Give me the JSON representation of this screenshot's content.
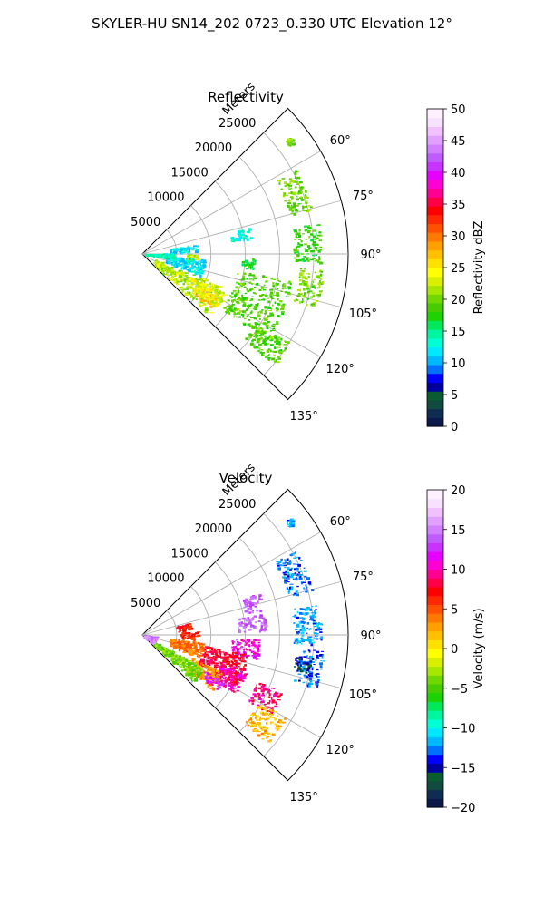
{
  "figure": {
    "title": "SKYLER-HU  SN14_202  0723_0.330 UTC Elevation 12°"
  },
  "chart_data": [
    {
      "type": "polar-sector-ppi",
      "title": "Reflectivity",
      "radial_label": "Meters",
      "radial_ticks": [
        "5000",
        "10000",
        "15000",
        "20000",
        "25000"
      ],
      "r_max": 30000,
      "azimuth_range": [
        45,
        135
      ],
      "azimuth_ticks": [
        "60°",
        "75°",
        "90°",
        "105°",
        "120°",
        "135°"
      ],
      "grid": true,
      "colorbar": {
        "label": "Reflectivity dBZ",
        "min": 0,
        "max": 50,
        "ticks": [
          "0",
          "5",
          "10",
          "15",
          "20",
          "25",
          "30",
          "35",
          "40",
          "45",
          "50"
        ],
        "colors": [
          "#0b1a4a",
          "#0f2d52",
          "#114a3e",
          "#0a5a32",
          "#0000a0",
          "#0000ff",
          "#0070ff",
          "#00b8ff",
          "#00e8ff",
          "#00ffd2",
          "#00f5a0",
          "#00e85a",
          "#1cd200",
          "#46cc00",
          "#70d800",
          "#a8e800",
          "#d8f000",
          "#ffff00",
          "#ffe000",
          "#ffc000",
          "#ffa000",
          "#ff7800",
          "#ff5000",
          "#ff2800",
          "#ff0000",
          "#ff0046",
          "#ff0090",
          "#ff00d2",
          "#e600ff",
          "#c833ff",
          "#bf5cff",
          "#d080ff",
          "#e0a0ff",
          "#f0c0ff",
          "#f8e0ff",
          "#fff0ff"
        ]
      },
      "echo_regions": [
        {
          "az": [
            51,
            54
          ],
          "r": [
            26500,
            27500
          ],
          "dbz": 20
        },
        {
          "az": [
            61,
            75
          ],
          "r": [
            22000,
            25500
          ],
          "dbz": 20
        },
        {
          "az": [
            80,
            93
          ],
          "r": [
            22000,
            26000
          ],
          "dbz": 18
        },
        {
          "az": [
            95,
            107
          ],
          "r": [
            23000,
            26500
          ],
          "dbz": 20
        },
        {
          "az": [
            100,
            125
          ],
          "r": [
            14000,
            22000
          ],
          "dbz": 19
        },
        {
          "az": [
            112,
            133
          ],
          "r": [
            2000,
            13000
          ],
          "dbz": 22
        },
        {
          "az": [
            120,
            128
          ],
          "r": [
            9000,
            12500
          ],
          "dbz": 27
        },
        {
          "az": [
            115,
            125
          ],
          "r": [
            8000,
            13500
          ],
          "dbz": 24
        },
        {
          "az": [
            95,
            110
          ],
          "r": [
            3500,
            9000
          ],
          "dbz": 12
        },
        {
          "az": [
            88,
            97
          ],
          "r": [
            400,
            4500
          ],
          "dbz": 14
        },
        {
          "az": [
            79,
            88
          ],
          "r": [
            4000,
            8000
          ],
          "dbz": 12
        },
        {
          "az": [
            76,
            82
          ],
          "r": [
            13000,
            16000
          ],
          "dbz": 13
        },
        {
          "az": [
            90,
            96
          ],
          "r": [
            6500,
            8000
          ],
          "dbz": 22
        },
        {
          "az": [
            92,
            98
          ],
          "r": [
            14500,
            16500
          ],
          "dbz": 17
        },
        {
          "az": [
            121,
            130
          ],
          "r": [
            19000,
            25000
          ],
          "dbz": 19
        }
      ]
    },
    {
      "type": "polar-sector-ppi",
      "title": "Velocity",
      "radial_label": "Meters",
      "radial_ticks": [
        "5000",
        "10000",
        "15000",
        "20000",
        "25000"
      ],
      "r_max": 30000,
      "azimuth_range": [
        45,
        135
      ],
      "azimuth_ticks": [
        "60°",
        "75°",
        "90°",
        "105°",
        "120°",
        "135°"
      ],
      "grid": true,
      "colorbar": {
        "label": "Velocity (m/s)",
        "min": -20,
        "max": 20,
        "ticks": [
          "−20",
          "−15",
          "−10",
          "−5",
          "0",
          "5",
          "10",
          "15",
          "20"
        ],
        "colors": [
          "#0b1a4a",
          "#0f2d52",
          "#114a3e",
          "#0a5a32",
          "#0000a0",
          "#0000ff",
          "#0070ff",
          "#00b8ff",
          "#00e8ff",
          "#00ffd2",
          "#00f5a0",
          "#00e85a",
          "#1cd200",
          "#46cc00",
          "#70d800",
          "#a8e800",
          "#d8f000",
          "#ffff00",
          "#ffe000",
          "#ffc000",
          "#ffa000",
          "#ff7800",
          "#ff5000",
          "#ff2800",
          "#ff0000",
          "#ff0046",
          "#ff0090",
          "#ff00d2",
          "#e600ff",
          "#c833ff",
          "#bf5cff",
          "#d080ff",
          "#e0a0ff",
          "#f0c0ff",
          "#f8e0ff",
          "#fff0ff"
        ]
      },
      "echo_regions": [
        {
          "az": [
            51,
            54
          ],
          "r": [
            26500,
            27500
          ],
          "vel": -12
        },
        {
          "az": [
            61,
            75
          ],
          "r": [
            22000,
            25500
          ],
          "vel": -13
        },
        {
          "az": [
            80,
            93
          ],
          "r": [
            22000,
            26000
          ],
          "vel": -12
        },
        {
          "az": [
            95,
            107
          ],
          "r": [
            23000,
            26500
          ],
          "vel": -13
        },
        {
          "az": [
            97,
            103
          ],
          "r": [
            22500,
            25000
          ],
          "vel": -16
        },
        {
          "az": [
            70,
            78
          ],
          "r": [
            15000,
            18000
          ],
          "vel": 14
        },
        {
          "az": [
            80,
            88
          ],
          "r": [
            14000,
            18000
          ],
          "vel": 14
        },
        {
          "az": [
            92,
            102
          ],
          "r": [
            13000,
            17000
          ],
          "vel": 11
        },
        {
          "az": [
            100,
            118
          ],
          "r": [
            9000,
            15500
          ],
          "vel": 8
        },
        {
          "az": [
            110,
            122
          ],
          "r": [
            12000,
            16000
          ],
          "vel": 10
        },
        {
          "az": [
            115,
            128
          ],
          "r": [
            8000,
            13000
          ],
          "vel": 3
        },
        {
          "az": [
            118,
            132
          ],
          "r": [
            2000,
            10000
          ],
          "vel": -4
        },
        {
          "az": [
            97,
            112
          ],
          "r": [
            4000,
            9000
          ],
          "vel": 4
        },
        {
          "az": [
            120,
            126
          ],
          "r": [
            10500,
            13500
          ],
          "vel": 12
        },
        {
          "az": [
            86,
            95
          ],
          "r": [
            5500,
            8000
          ],
          "vel": 6
        },
        {
          "az": [
            75,
            85
          ],
          "r": [
            5000,
            7000
          ],
          "vel": 7
        },
        {
          "az": [
            112,
            122
          ],
          "r": [
            18000,
            22000
          ],
          "vel": 9
        },
        {
          "az": [
            120,
            131
          ],
          "r": [
            19500,
            24000
          ],
          "vel": 2
        },
        {
          "az": [
            95,
            130
          ],
          "r": [
            200,
            2000
          ],
          "vel": 15
        }
      ]
    }
  ]
}
